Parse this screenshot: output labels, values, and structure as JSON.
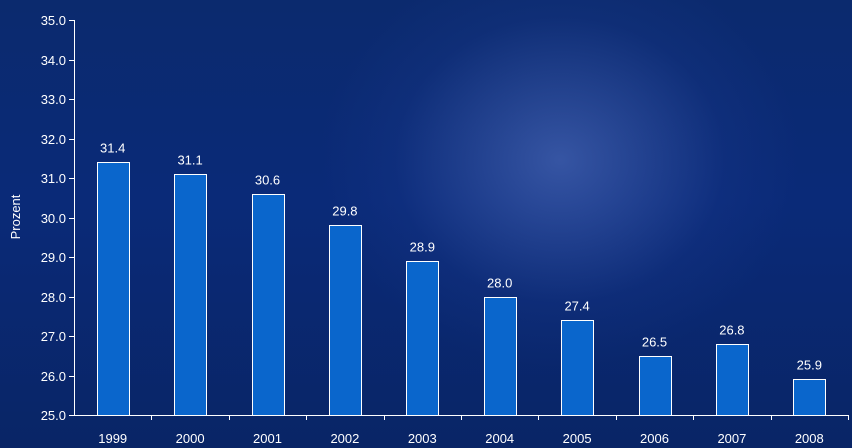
{
  "chart_data": {
    "type": "bar",
    "categories": [
      "1999",
      "2000",
      "2001",
      "2002",
      "2003",
      "2004",
      "2005",
      "2006",
      "2007",
      "2008"
    ],
    "values": [
      31.4,
      31.1,
      30.6,
      29.8,
      28.9,
      28.0,
      27.4,
      26.5,
      26.8,
      25.9
    ],
    "value_labels": [
      "31.4",
      "31.1",
      "30.6",
      "29.8",
      "28.9",
      "28.0",
      "27.4",
      "26.5",
      "26.8",
      "25.9"
    ],
    "title": "",
    "xlabel": "",
    "ylabel": "Prozent",
    "ylim": [
      25.0,
      35.0
    ],
    "y_ticks": [
      "25.0",
      "26.0",
      "27.0",
      "28.0",
      "29.0",
      "30.0",
      "31.0",
      "32.0",
      "33.0",
      "34.0",
      "35.0"
    ],
    "grid": false,
    "legend": "none",
    "colors": {
      "bar": "#0a66cc",
      "bar_border": "#ffffff",
      "text": "#ffffff",
      "axis": "#ffffff"
    }
  }
}
